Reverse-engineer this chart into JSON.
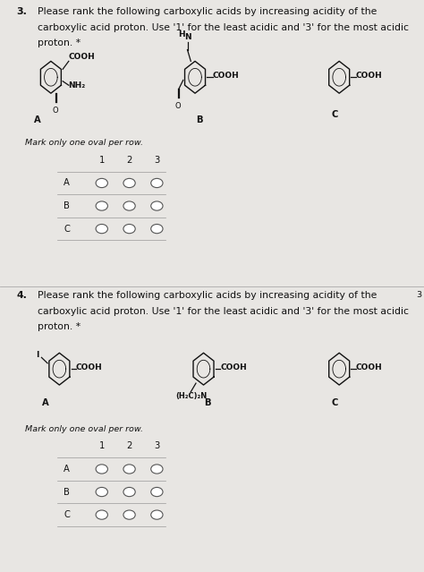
{
  "bg_color": "#c8c5c2",
  "paper_color": "#e8e6e3",
  "text_color": "#111111",
  "line_color": "#888888",
  "oval_color": "#ffffff",
  "oval_edge": "#555555",
  "q3": {
    "num": "3.",
    "line1": "Please rank the following carboxylic acids by increasing acidity of the",
    "line2": "carboxylic acid proton. Use '1' for the least acidic and '3' for the most acidic",
    "line3": "proton. *",
    "mark": "Mark only one oval per row.",
    "rows": [
      "A",
      "B",
      "C"
    ],
    "cols": [
      "1",
      "2",
      "3"
    ],
    "mol_a_label": "A",
    "mol_b_label": "B",
    "mol_c_label": "C"
  },
  "q4": {
    "num": "4.",
    "line1": "Please rank the following carboxylic acids by increasing acidity of the",
    "line2": "carboxylic acid proton. Use '1' for the least acidic and '3' for the most acidic",
    "line3": "proton. *",
    "mark": "Mark only one oval per row.",
    "rows": [
      "A",
      "B",
      "C"
    ],
    "cols": [
      "1",
      "2",
      "3"
    ],
    "mol_a_label": "A",
    "mol_b_label": "B",
    "mol_c_label": "C"
  },
  "figw": 4.74,
  "figh": 6.39,
  "dpi": 100,
  "fs_title": 7.8,
  "fs_body": 7.2,
  "fs_small": 6.8,
  "fs_mol": 6.5,
  "fs_num": 7.8
}
